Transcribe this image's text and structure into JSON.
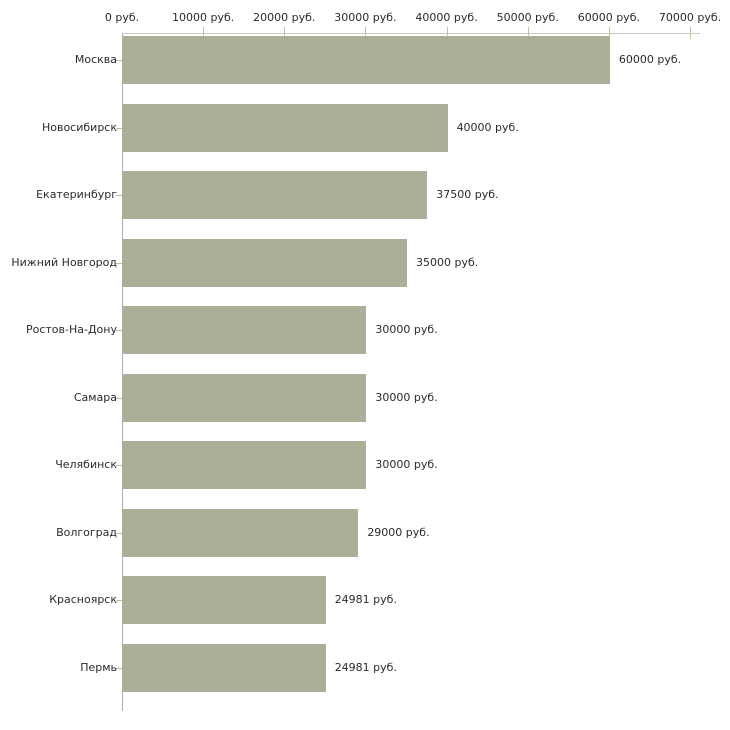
{
  "chart_data": {
    "type": "bar",
    "orientation": "horizontal",
    "title": "",
    "categories": [
      "Москва",
      "Новосибирск",
      "Екатеринбург",
      "Нижний Новгород",
      "Ростов-На-Дону",
      "Самара",
      "Челябинск",
      "Волгоград",
      "Красноярск",
      "Пермь"
    ],
    "values": [
      60000,
      40000,
      37500,
      35000,
      30000,
      30000,
      30000,
      29000,
      24981,
      24981
    ],
    "value_labels": [
      "60000 руб.",
      "40000 руб.",
      "37500 руб.",
      "35000 руб.",
      "30000 руб.",
      "30000 руб.",
      "30000 руб.",
      "29000 руб.",
      "24981 руб.",
      "24981 руб."
    ],
    "x_axis": {
      "position": "top",
      "min": 0,
      "max": 70000,
      "ticks": [
        0,
        10000,
        20000,
        30000,
        40000,
        50000,
        60000,
        70000
      ],
      "tick_labels": [
        "0 руб.",
        "10000 руб.",
        "20000 руб.",
        "30000 руб.",
        "40000 руб.",
        "50000 руб.",
        "60000 руб.",
        "70000 руб."
      ]
    },
    "legend": "none",
    "grid": "off",
    "colors": {
      "bar": "#aab098",
      "axis_h": "#c9c9c4",
      "axis_v": "#aeaeab",
      "tick": "#c3c79b",
      "text": "#2b2b2b",
      "background": "#ffffff"
    }
  }
}
